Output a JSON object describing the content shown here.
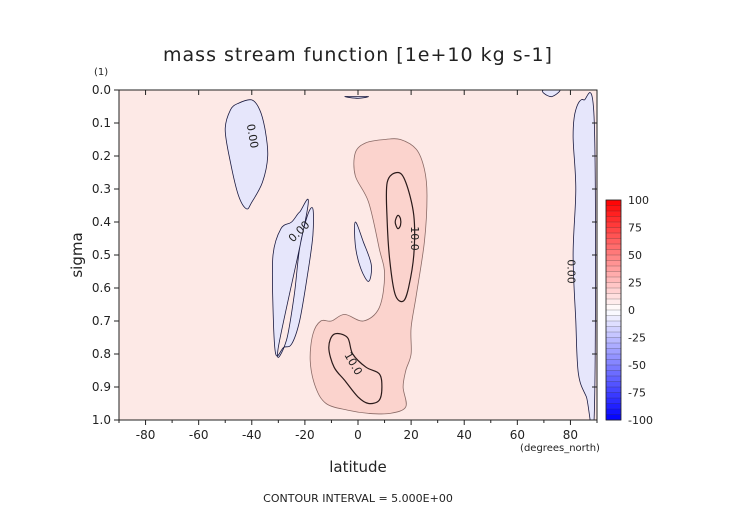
{
  "chart_data": {
    "type": "contour",
    "title": "mass stream function [1e+10 kg s-1]",
    "xlabel": "latitude",
    "x_units": "(degrees_north)",
    "ylabel": "sigma",
    "y_units": "(1)",
    "xlim": [
      -90,
      90
    ],
    "ylim": [
      1.0,
      0.0
    ],
    "x_ticks": [
      -80,
      -60,
      -40,
      -20,
      0,
      20,
      40,
      60,
      80
    ],
    "x_tick_labels": [
      "-80",
      "-60",
      "-40",
      "-20",
      "0",
      "20",
      "40",
      "60",
      "80"
    ],
    "y_ticks": [
      0.0,
      0.1,
      0.2,
      0.3,
      0.4,
      0.5,
      0.6,
      0.7,
      0.8,
      0.9,
      1.0
    ],
    "y_tick_labels": [
      "0.0",
      "0.1",
      "0.2",
      "0.3",
      "0.4",
      "0.5",
      "0.6",
      "0.7",
      "0.8",
      "0.9",
      "1.0"
    ],
    "contour_interval": 5.0,
    "footer": "CONTOUR INTERVAL = 5.000E+00",
    "colorbar": {
      "min": -100,
      "max": 100,
      "tick_values": [
        100,
        75,
        50,
        25,
        0,
        -25,
        -50,
        -75,
        -100
      ],
      "tick_labels": [
        "100",
        "75",
        "50",
        "25",
        "0",
        "-25",
        "-50",
        "-75",
        "-100"
      ],
      "colormap": "blue-white-red",
      "negative_color": "#0000ff",
      "positive_color": "#ff0000"
    },
    "background_color": "#fde9e6",
    "regions": [
      {
        "sign": "negative",
        "level": 0,
        "color": "#e6e6fb",
        "points": [
          [
            -45,
            0.04
          ],
          [
            -40,
            0.03
          ],
          [
            -37,
            0.06
          ],
          [
            -35,
            0.12
          ],
          [
            -34,
            0.2
          ],
          [
            -36,
            0.28
          ],
          [
            -40,
            0.34
          ],
          [
            -42,
            0.36
          ],
          [
            -45,
            0.32
          ],
          [
            -48,
            0.22
          ],
          [
            -50,
            0.12
          ],
          [
            -48,
            0.06
          ]
        ]
      },
      {
        "sign": "negative",
        "level": 0,
        "color": "#e6e6fb",
        "points": [
          [
            -30,
            0.78
          ],
          [
            -27,
            0.76
          ],
          [
            -24,
            0.62
          ],
          [
            -22,
            0.48
          ],
          [
            -19,
            0.38
          ],
          [
            -17,
            0.36
          ],
          [
            -17,
            0.44
          ],
          [
            -19,
            0.56
          ],
          [
            -22,
            0.7
          ],
          [
            -25,
            0.77
          ],
          [
            -28,
            0.78
          ],
          [
            -31,
            0.8
          ],
          [
            -32,
            0.66
          ],
          [
            -32,
            0.5
          ],
          [
            -29,
            0.42
          ],
          [
            -25,
            0.4
          ],
          [
            -22,
            0.37
          ],
          [
            -19,
            0.36
          ]
        ]
      },
      {
        "sign": "negative",
        "level": 0,
        "color": "#e6e6fb",
        "points": [
          [
            -1,
            0.4
          ],
          [
            2,
            0.46
          ],
          [
            5,
            0.53
          ],
          [
            4,
            0.58
          ],
          [
            1,
            0.54
          ],
          [
            -1,
            0.47
          ]
        ]
      },
      {
        "sign": "negative",
        "level": 0,
        "color": "#e6e6fb",
        "points": [
          [
            82,
            0.06
          ],
          [
            85,
            0.03
          ],
          [
            89,
            0.1
          ],
          [
            89,
            0.98
          ],
          [
            86,
            0.93
          ],
          [
            83,
            0.86
          ],
          [
            82,
            0.7
          ],
          [
            81,
            0.5
          ],
          [
            82,
            0.3
          ],
          [
            81,
            0.14
          ]
        ]
      },
      {
        "sign": "negative",
        "level": 0,
        "color": "#e6e6fb",
        "points": [
          [
            70,
            0.0
          ],
          [
            76,
            0.0
          ],
          [
            73,
            0.02
          ],
          [
            70,
            0.01
          ]
        ]
      },
      {
        "sign": "negative",
        "level": 0,
        "color": "#e6e6fb",
        "points": [
          [
            -5,
            0.02
          ],
          [
            0,
            0.02
          ],
          [
            4,
            0.02
          ],
          [
            0,
            0.025
          ]
        ]
      },
      {
        "sign": "positive",
        "level": 5,
        "color": "#fbd3cd",
        "points": [
          [
            -1,
            0.19
          ],
          [
            3,
            0.16
          ],
          [
            10,
            0.15
          ],
          [
            16,
            0.15
          ],
          [
            22,
            0.18
          ],
          [
            25,
            0.24
          ],
          [
            26,
            0.32
          ],
          [
            25,
            0.46
          ],
          [
            22,
            0.62
          ],
          [
            20,
            0.72
          ],
          [
            20,
            0.8
          ],
          [
            18,
            0.85
          ],
          [
            17,
            0.9
          ],
          [
            18,
            0.96
          ],
          [
            12,
            0.98
          ],
          [
            4,
            0.98
          ],
          [
            -4,
            0.97
          ],
          [
            -12,
            0.95
          ],
          [
            -16,
            0.9
          ],
          [
            -18,
            0.82
          ],
          [
            -17,
            0.74
          ],
          [
            -14,
            0.7
          ],
          [
            -10,
            0.7
          ],
          [
            -5,
            0.68
          ],
          [
            2,
            0.7
          ],
          [
            8,
            0.66
          ],
          [
            10,
            0.56
          ],
          [
            8,
            0.48
          ],
          [
            4,
            0.34
          ],
          [
            -1,
            0.26
          ]
        ]
      },
      {
        "sign": "positive",
        "level": 10,
        "color": "#fbd3cd",
        "points": [
          [
            11,
            0.28
          ],
          [
            15,
            0.25
          ],
          [
            18,
            0.28
          ],
          [
            21,
            0.38
          ],
          [
            21,
            0.5
          ],
          [
            19,
            0.6
          ],
          [
            17,
            0.64
          ],
          [
            14,
            0.62
          ],
          [
            12,
            0.52
          ],
          [
            11,
            0.4
          ]
        ]
      },
      {
        "sign": "positive",
        "level": 10,
        "color": "#fbd3cd",
        "points": [
          [
            -9,
            0.74
          ],
          [
            -4,
            0.75
          ],
          [
            -2,
            0.8
          ],
          [
            3,
            0.84
          ],
          [
            8,
            0.86
          ],
          [
            9,
            0.9
          ],
          [
            8,
            0.94
          ],
          [
            4,
            0.95
          ],
          [
            0,
            0.93
          ],
          [
            -5,
            0.88
          ],
          [
            -9,
            0.84
          ],
          [
            -11,
            0.78
          ]
        ]
      },
      {
        "sign": "positive",
        "level": 10,
        "color": "#fbd3cd",
        "points": [
          [
            15,
            0.38
          ],
          [
            16,
            0.39
          ],
          [
            16,
            0.41
          ],
          [
            15,
            0.42
          ],
          [
            14,
            0.4
          ]
        ]
      }
    ],
    "contour_labels": [
      {
        "text": "0.00",
        "x": -40,
        "y": 0.14,
        "angle": 80
      },
      {
        "text": "0.00",
        "x": -22,
        "y": 0.43,
        "angle": -45
      },
      {
        "text": "10.0",
        "x": 21,
        "y": 0.45,
        "angle": 90
      },
      {
        "text": "10.0",
        "x": -2,
        "y": 0.83,
        "angle": 60
      },
      {
        "text": "0.00",
        "x": 80,
        "y": 0.55,
        "angle": 90
      }
    ]
  }
}
